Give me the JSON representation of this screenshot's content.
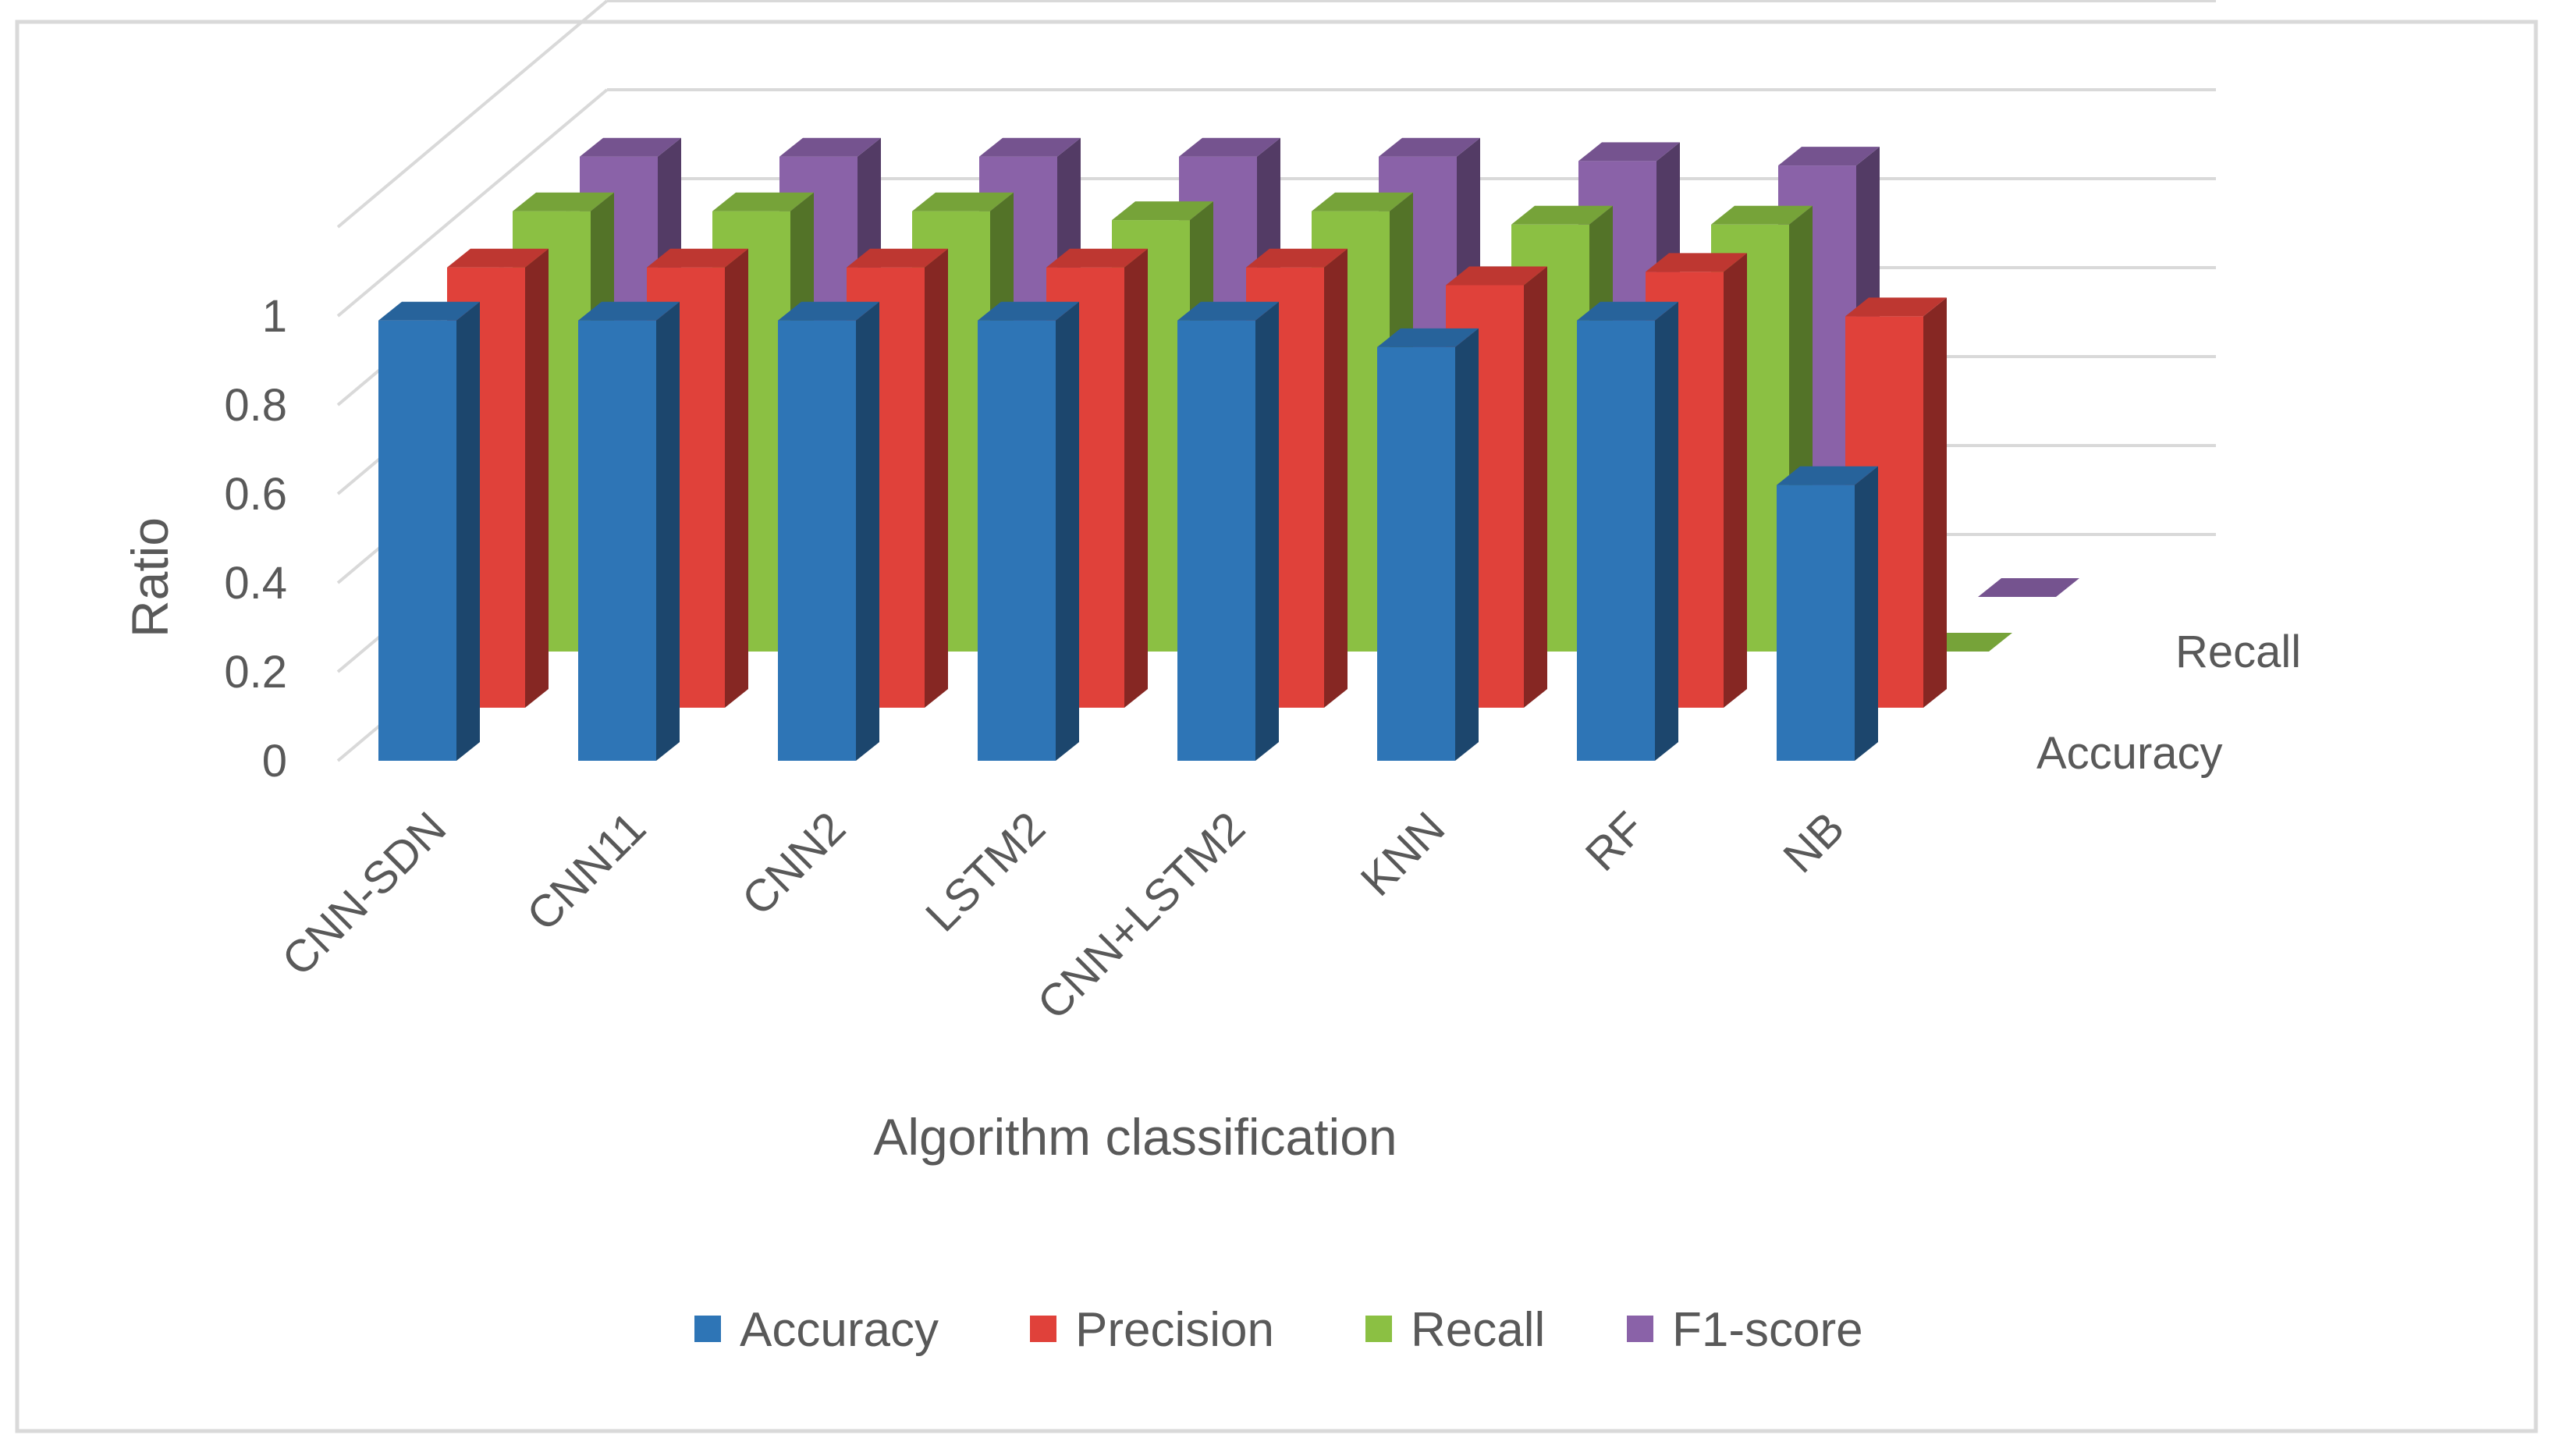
{
  "chart_data": {
    "type": "bar",
    "subtype": "3d-column",
    "xlabel": "Algorithm classification",
    "ylabel": "Ratio",
    "ylim": [
      0,
      1
    ],
    "yticks": [
      "0",
      "0.2",
      "0.4",
      "0.6",
      "0.8",
      "1"
    ],
    "categories": [
      "CNN-SDN",
      "CNN11",
      "CNN2",
      "LSTM2",
      "CNN+LSTM2",
      "KNN",
      "RF",
      "NB"
    ],
    "series": [
      {
        "name": "Accuracy",
        "color": "#2E75B6",
        "values": [
          0.99,
          0.99,
          0.99,
          0.99,
          0.99,
          0.93,
          0.99,
          0.62
        ]
      },
      {
        "name": "Precision",
        "color": "#E0413A",
        "values": [
          0.99,
          0.99,
          0.99,
          0.99,
          0.99,
          0.95,
          0.98,
          0.88
        ]
      },
      {
        "name": "Recall",
        "color": "#8BC043",
        "values": [
          0.99,
          0.99,
          0.99,
          0.97,
          0.99,
          0.96,
          0.96,
          0.0
        ]
      },
      {
        "name": "F1-score",
        "color": "#8A62A8",
        "values": [
          0.99,
          0.99,
          0.99,
          0.99,
          0.99,
          0.98,
          0.97,
          0.0
        ]
      }
    ],
    "depth_axis_labels": [
      "Accuracy",
      "Recall"
    ],
    "gridlines": true,
    "legend_position": "bottom"
  },
  "frame_border_color": "#D9D9D9",
  "grid_color": "#D9D9D9",
  "text_color": "#595959"
}
